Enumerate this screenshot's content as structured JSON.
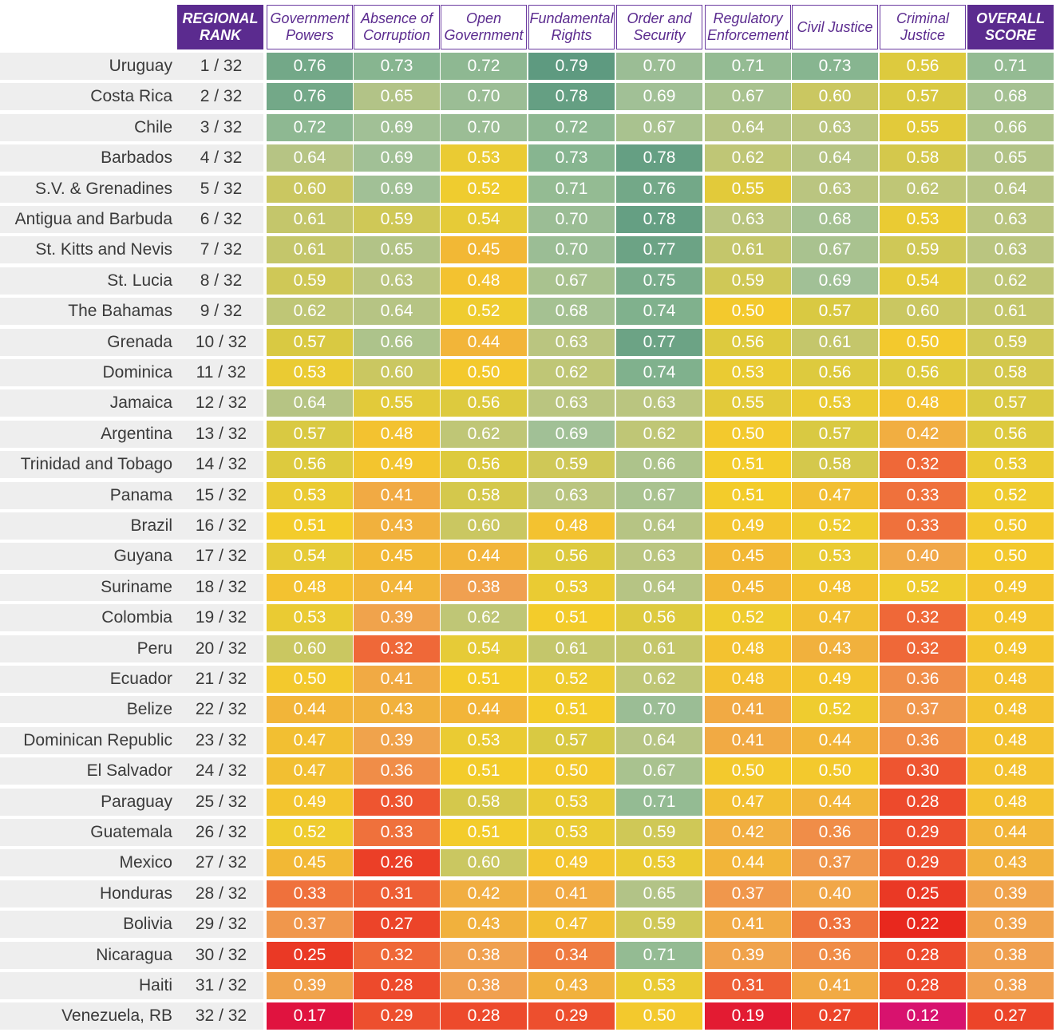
{
  "chart_data": {
    "type": "heatmap",
    "rank_header": "REGIONAL RANK",
    "columns": [
      "Government Powers",
      "Absence of Corruption",
      "Open Government",
      "Fundamental Rights",
      "Order and Security",
      "Regulatory Enforcement",
      "Civil Justice",
      "Criminal Justice",
      "OVERALL SCORE"
    ],
    "header_colors": {
      "purple": "#5b2b8f",
      "white": "#ffffff"
    },
    "color_scale": [
      {
        "v": 0.12,
        "c": "#d8126e"
      },
      {
        "v": 0.17,
        "c": "#e0133f"
      },
      {
        "v": 0.22,
        "c": "#e8281e"
      },
      {
        "v": 0.3,
        "c": "#ee5530"
      },
      {
        "v": 0.38,
        "c": "#f0a050"
      },
      {
        "v": 0.45,
        "c": "#f2b835"
      },
      {
        "v": 0.51,
        "c": "#f3cc2b"
      },
      {
        "v": 0.57,
        "c": "#d9c942"
      },
      {
        "v": 0.63,
        "c": "#bac580"
      },
      {
        "v": 0.69,
        "c": "#a1c096"
      },
      {
        "v": 0.73,
        "c": "#87b590"
      },
      {
        "v": 0.79,
        "c": "#5e9a80"
      }
    ],
    "rows": [
      {
        "country": "Uruguay",
        "rank": "1 / 32",
        "values": [
          0.76,
          0.73,
          0.72,
          0.79,
          0.7,
          0.71,
          0.73,
          0.56,
          0.71
        ]
      },
      {
        "country": "Costa Rica",
        "rank": "2 / 32",
        "values": [
          0.76,
          0.65,
          0.7,
          0.78,
          0.69,
          0.67,
          0.6,
          0.57,
          0.68
        ]
      },
      {
        "country": "Chile",
        "rank": "3 / 32",
        "values": [
          0.72,
          0.69,
          0.7,
          0.72,
          0.67,
          0.64,
          0.63,
          0.55,
          0.66
        ]
      },
      {
        "country": "Barbados",
        "rank": "4 / 32",
        "values": [
          0.64,
          0.69,
          0.53,
          0.73,
          0.78,
          0.62,
          0.64,
          0.58,
          0.65
        ]
      },
      {
        "country": "S.V. & Grenadines",
        "rank": "5 / 32",
        "values": [
          0.6,
          0.69,
          0.52,
          0.71,
          0.76,
          0.55,
          0.63,
          0.62,
          0.64
        ]
      },
      {
        "country": "Antigua and Barbuda",
        "rank": "6 / 32",
        "values": [
          0.61,
          0.59,
          0.54,
          0.7,
          0.78,
          0.63,
          0.68,
          0.53,
          0.63
        ]
      },
      {
        "country": "St. Kitts and Nevis",
        "rank": "7 / 32",
        "values": [
          0.61,
          0.65,
          0.45,
          0.7,
          0.77,
          0.61,
          0.67,
          0.59,
          0.63
        ]
      },
      {
        "country": "St. Lucia",
        "rank": "8 / 32",
        "values": [
          0.59,
          0.63,
          0.48,
          0.67,
          0.75,
          0.59,
          0.69,
          0.54,
          0.62
        ]
      },
      {
        "country": "The Bahamas",
        "rank": "9 / 32",
        "values": [
          0.62,
          0.64,
          0.52,
          0.68,
          0.74,
          0.5,
          0.57,
          0.6,
          0.61
        ]
      },
      {
        "country": "Grenada",
        "rank": "10 / 32",
        "values": [
          0.57,
          0.66,
          0.44,
          0.63,
          0.77,
          0.56,
          0.61,
          0.5,
          0.59
        ]
      },
      {
        "country": "Dominica",
        "rank": "11 / 32",
        "values": [
          0.53,
          0.6,
          0.5,
          0.62,
          0.74,
          0.53,
          0.56,
          0.56,
          0.58
        ]
      },
      {
        "country": "Jamaica",
        "rank": "12 / 32",
        "values": [
          0.64,
          0.55,
          0.56,
          0.63,
          0.63,
          0.55,
          0.53,
          0.48,
          0.57
        ]
      },
      {
        "country": "Argentina",
        "rank": "13 / 32",
        "values": [
          0.57,
          0.48,
          0.62,
          0.69,
          0.62,
          0.5,
          0.57,
          0.42,
          0.56
        ]
      },
      {
        "country": "Trinidad and Tobago",
        "rank": "14 / 32",
        "values": [
          0.56,
          0.49,
          0.56,
          0.59,
          0.66,
          0.51,
          0.58,
          0.32,
          0.53
        ]
      },
      {
        "country": "Panama",
        "rank": "15 / 32",
        "values": [
          0.53,
          0.41,
          0.58,
          0.63,
          0.67,
          0.51,
          0.47,
          0.33,
          0.52
        ]
      },
      {
        "country": "Brazil",
        "rank": "16 / 32",
        "values": [
          0.51,
          0.43,
          0.6,
          0.48,
          0.64,
          0.49,
          0.52,
          0.33,
          0.5
        ]
      },
      {
        "country": "Guyana",
        "rank": "17 / 32",
        "values": [
          0.54,
          0.45,
          0.44,
          0.56,
          0.63,
          0.45,
          0.53,
          0.4,
          0.5
        ]
      },
      {
        "country": "Suriname",
        "rank": "18 / 32",
        "values": [
          0.48,
          0.44,
          0.38,
          0.53,
          0.64,
          0.45,
          0.48,
          0.52,
          0.49
        ]
      },
      {
        "country": "Colombia",
        "rank": "19 / 32",
        "values": [
          0.53,
          0.39,
          0.62,
          0.51,
          0.56,
          0.52,
          0.47,
          0.32,
          0.49
        ]
      },
      {
        "country": "Peru",
        "rank": "20 / 32",
        "values": [
          0.6,
          0.32,
          0.54,
          0.61,
          0.61,
          0.48,
          0.43,
          0.32,
          0.49
        ]
      },
      {
        "country": "Ecuador",
        "rank": "21 / 32",
        "values": [
          0.5,
          0.41,
          0.51,
          0.52,
          0.62,
          0.48,
          0.49,
          0.36,
          0.48
        ]
      },
      {
        "country": "Belize",
        "rank": "22 / 32",
        "values": [
          0.44,
          0.43,
          0.44,
          0.51,
          0.7,
          0.41,
          0.52,
          0.37,
          0.48
        ]
      },
      {
        "country": "Dominican Republic",
        "rank": "23 / 32",
        "values": [
          0.47,
          0.39,
          0.53,
          0.57,
          0.64,
          0.41,
          0.44,
          0.36,
          0.48
        ]
      },
      {
        "country": "El Salvador",
        "rank": "24 / 32",
        "values": [
          0.47,
          0.36,
          0.51,
          0.5,
          0.67,
          0.5,
          0.5,
          0.3,
          0.48
        ]
      },
      {
        "country": "Paraguay",
        "rank": "25 / 32",
        "values": [
          0.49,
          0.3,
          0.58,
          0.53,
          0.71,
          0.47,
          0.44,
          0.28,
          0.48
        ]
      },
      {
        "country": "Guatemala",
        "rank": "26 / 32",
        "values": [
          0.52,
          0.33,
          0.51,
          0.53,
          0.59,
          0.42,
          0.36,
          0.29,
          0.44
        ]
      },
      {
        "country": "Mexico",
        "rank": "27 / 32",
        "values": [
          0.45,
          0.26,
          0.6,
          0.49,
          0.53,
          0.44,
          0.37,
          0.29,
          0.43
        ]
      },
      {
        "country": "Honduras",
        "rank": "28 / 32",
        "values": [
          0.33,
          0.31,
          0.42,
          0.41,
          0.65,
          0.37,
          0.4,
          0.25,
          0.39
        ]
      },
      {
        "country": "Bolivia",
        "rank": "29 / 32",
        "values": [
          0.37,
          0.27,
          0.43,
          0.47,
          0.59,
          0.41,
          0.33,
          0.22,
          0.39
        ]
      },
      {
        "country": "Nicaragua",
        "rank": "30 / 32",
        "values": [
          0.25,
          0.32,
          0.38,
          0.34,
          0.71,
          0.39,
          0.36,
          0.28,
          0.38
        ]
      },
      {
        "country": "Haiti",
        "rank": "31 / 32",
        "values": [
          0.39,
          0.28,
          0.38,
          0.43,
          0.53,
          0.31,
          0.41,
          0.28,
          0.38
        ]
      },
      {
        "country": "Venezuela, RB",
        "rank": "32 / 32",
        "values": [
          0.17,
          0.29,
          0.28,
          0.29,
          0.5,
          0.19,
          0.27,
          0.12,
          0.27
        ]
      }
    ]
  }
}
